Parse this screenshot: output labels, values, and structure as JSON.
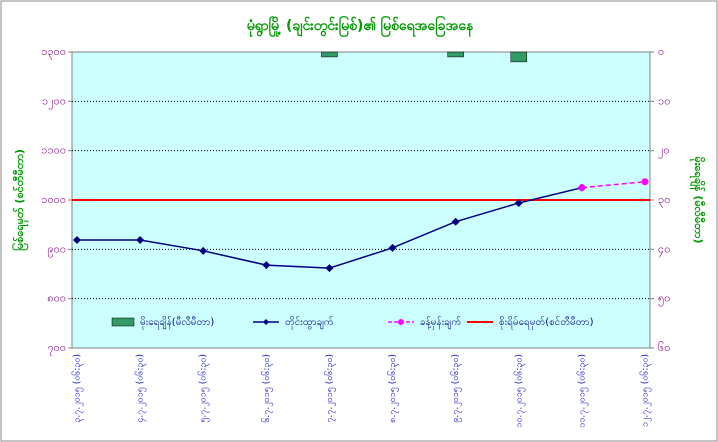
{
  "chart_data": {
    "type": "combo",
    "title": "မုံရွာမြို့ (ချင်းတွင်းမြစ်)၏ မြစ်ရေအခြေအနေ",
    "ylabel": "မြစ်ရေမှတ် (စင်တီမီတာ)",
    "y2label": "မိုးရေချိန် (မီလီမီတာ)",
    "categories": [
      "၃.၇.၂၀၁၅ (၀၆:၃၀)",
      "၄.၇.၂၀၁၅ (၀၆:၃၀)",
      "၅.၇.၂၀၁၅ (၀၆:၃၀)",
      "၆.၇.၂၀၁၅ (၀၆:၃၀)",
      "၇.၇.၂၀၁၅ (၀၆:၃၀)",
      "၈.၇.၂၀၁၅ (၀၆:၃၀)",
      "၉.၇.၂၀၁၅ (၀၆:၃၀)",
      "၁၀.၇.၂၀၁၅ (၀၆:၃၀)",
      "၁၁.၇.၂၀၁၅ (၀၆:၃၀)",
      "၁၂.၇.၂၀၁၅ (၀၆:၃၀)"
    ],
    "series": [
      {
        "name": "မိုးရေချိန်(မီလီမီတာ)",
        "type": "bar",
        "axis": "y2",
        "color": "#339966",
        "values": [
          0,
          0,
          0,
          0,
          1,
          0,
          1,
          2,
          0,
          0
        ]
      },
      {
        "name": "တိုင်းထွာချက်",
        "type": "line",
        "color": "#000080",
        "values": [
          919,
          919,
          897,
          868,
          862,
          903,
          956,
          994,
          1025,
          null
        ]
      },
      {
        "name": "ခန့်မှန်းချက်",
        "type": "line",
        "dashed": true,
        "color": "#ff00ff",
        "values": [
          null,
          null,
          null,
          null,
          null,
          null,
          null,
          null,
          1025,
          1037
        ]
      }
    ],
    "reference_line": {
      "name": "စိုးရိမ်ရေမှတ်(စင်တီမီတာ)",
      "value": 1000,
      "color": "#ff0000"
    },
    "ylim": [
      700,
      1300
    ],
    "yticks": [
      {
        "value": 700,
        "label": "၇၀၀"
      },
      {
        "value": 800,
        "label": "၈၀၀"
      },
      {
        "value": 900,
        "label": "၉၀၀"
      },
      {
        "value": 1000,
        "label": "၁၀၀၀"
      },
      {
        "value": 1100,
        "label": "၁၁၀၀"
      },
      {
        "value": 1200,
        "label": "၁၂၀၀"
      },
      {
        "value": 1300,
        "label": "၁၃၀၀"
      }
    ],
    "y2lim": [
      60,
      0
    ],
    "y2ticks": [
      {
        "value": 0,
        "label": "၀"
      },
      {
        "value": 10,
        "label": "၁၀"
      },
      {
        "value": 20,
        "label": "၂၀"
      },
      {
        "value": 30,
        "label": "၃၀"
      },
      {
        "value": 40,
        "label": "၄၀"
      },
      {
        "value": 50,
        "label": "၅၀"
      },
      {
        "value": 60,
        "label": "၆၀"
      }
    ],
    "grid": true,
    "legend": "bottom"
  }
}
